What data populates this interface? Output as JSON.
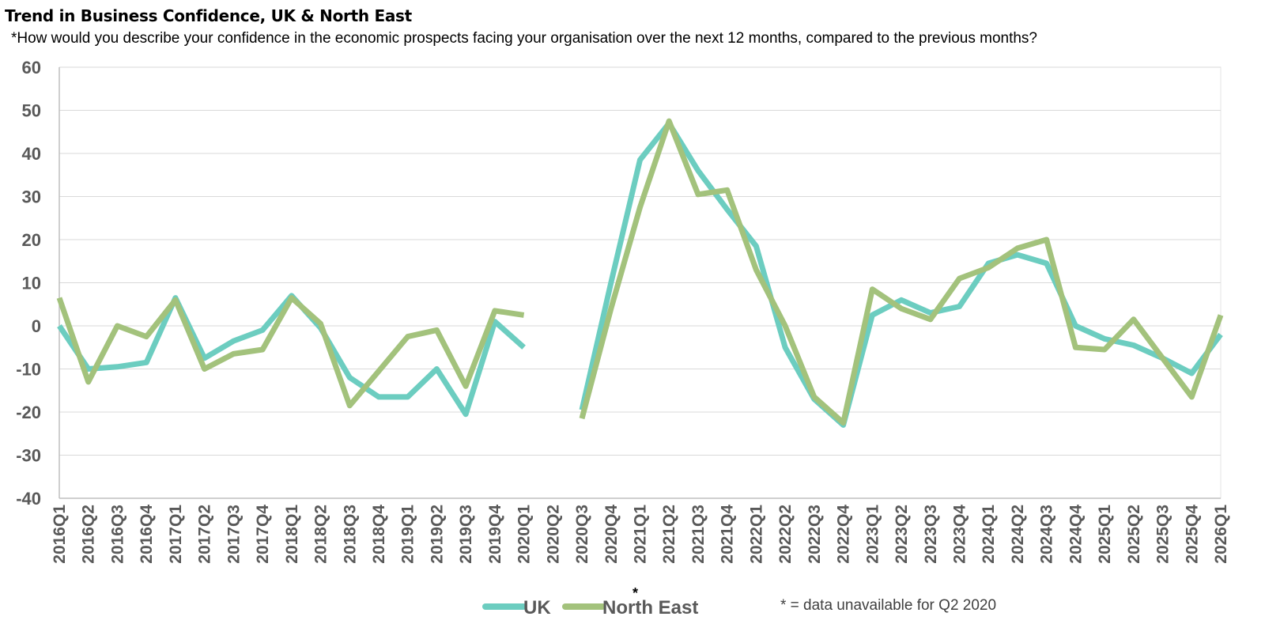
{
  "chart_data": {
    "type": "line",
    "title": "Trend in Business Confidence, UK & North East",
    "subtitle": "*How would you describe your confidence in the economic prospects facing your organisation over the next 12 months, compared to the previous months?",
    "xlabel": "",
    "ylabel": "",
    "ylim": [
      -40,
      60
    ],
    "yticks": [
      "60",
      "50",
      "40",
      "30",
      "20",
      "10",
      "0",
      "-10",
      "-20",
      "-30",
      "-40"
    ],
    "categories": [
      "2016Q1",
      "2016Q2",
      "2016Q3",
      "2016Q4",
      "2017Q1",
      "2017Q2",
      "2017Q3",
      "2017Q4",
      "2018Q1",
      "2018Q2",
      "2018Q3",
      "2018Q4",
      "2019Q1",
      "2019Q2",
      "2019Q3",
      "2019Q4",
      "2020Q1",
      "2020Q2",
      "2020Q3",
      "2020Q4",
      "2021Q1",
      "2021Q2",
      "2021Q3",
      "2021Q4",
      "2022Q1",
      "2022Q2",
      "2022Q3",
      "2022Q4",
      "2023Q1",
      "2023Q2",
      "2023Q3",
      "2023Q4",
      "2024Q1",
      "2024Q2",
      "2024Q3",
      "2024Q4",
      "2025Q1",
      "2025Q2",
      "2025Q3",
      "2025Q4",
      "2026Q1"
    ],
    "series": [
      {
        "name": "UK",
        "color": "#6ccdc0",
        "values": [
          0,
          -10,
          -9.5,
          -8.5,
          6.5,
          -7.5,
          -3.5,
          -1,
          7,
          -0.5,
          -12,
          -16.5,
          -16.5,
          -10,
          -20.5,
          1,
          -5,
          null,
          -19.5,
          10,
          38.5,
          47,
          36,
          27,
          18.5,
          -5,
          -17,
          -23,
          2.5,
          6,
          3,
          4.5,
          14.5,
          16.5,
          14.5,
          0,
          -3,
          -4.5,
          -7.5,
          -11,
          -2
        ]
      },
      {
        "name": "North East",
        "color": "#a3c27c",
        "values": [
          6.5,
          -13,
          0,
          -2.5,
          6,
          -10,
          -6.5,
          -5.5,
          6.5,
          0.5,
          -18.5,
          -10.5,
          -2.5,
          -1,
          -14,
          3.5,
          2.5,
          null,
          -21.5,
          4,
          27.5,
          47.5,
          30.5,
          31.5,
          13,
          0,
          -16.5,
          -22.5,
          8.5,
          4,
          1.5,
          11,
          13.5,
          18,
          20,
          -5,
          -5.5,
          1.5,
          -7.5,
          -16.5,
          2.5
        ]
      }
    ],
    "legend": {
      "position": "bottom",
      "star": "*"
    },
    "note": "* = data unavailable for Q2 2020",
    "grid": true
  }
}
